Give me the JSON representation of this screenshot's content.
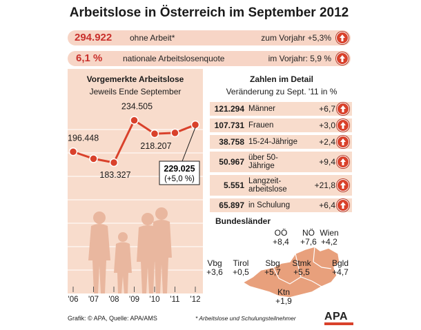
{
  "title": "Arbeitslose in Österreich im September 2012",
  "summary": [
    {
      "value": "294.922",
      "desc": "ohne Arbeit*",
      "cmp": "zum Vorjahr +5,3%"
    },
    {
      "value": "6,1 %",
      "desc": "nationale Arbeitslosenquote",
      "cmp": "im Vorjahr: 5,9 %"
    }
  ],
  "left_heading": "Vorgemerkte Arbeitslose",
  "left_subheading": "Jeweils Ende September",
  "chart_data": {
    "type": "line",
    "title": "Vorgemerkte Arbeitslose",
    "subtitle": "Jeweils Ende September",
    "x": [
      "'06",
      "'07",
      "'08",
      "'09",
      "'10",
      "'11",
      "'12"
    ],
    "values": [
      196448,
      null,
      183327,
      234505,
      218207,
      null,
      229025
    ],
    "series_points": [
      {
        "x": "'06",
        "y": 196448,
        "label": "196.448"
      },
      {
        "x": "'07",
        "y": 188000,
        "label": ""
      },
      {
        "x": "'08",
        "y": 183327,
        "label": "183.327"
      },
      {
        "x": "'09",
        "y": 234505,
        "label": "234.505"
      },
      {
        "x": "'10",
        "y": 218207,
        "label": "218.207"
      },
      {
        "x": "'11",
        "y": 219300,
        "label": ""
      },
      {
        "x": "'12",
        "y": 229025,
        "label": ""
      }
    ],
    "callout": {
      "value": "229.025",
      "change": "(+5,0 %)"
    },
    "ylim": [
      150000,
      250000
    ],
    "color": "#d9412b"
  },
  "right_heading": "Zahlen im Detail",
  "right_subheading": "Veränderung zu Sept. '11 in %",
  "details": [
    {
      "num": "121.294",
      "label": "Männer",
      "change": "+6,7"
    },
    {
      "num": "107.731",
      "label": "Frauen",
      "change": "+3,0"
    },
    {
      "num": "38.758",
      "label": "15-24-Jährige",
      "change": "+2,4"
    },
    {
      "num": "50.967",
      "label": "über 50-\nJährige",
      "change": "+9,4"
    },
    {
      "num": "5.551",
      "label": "Langzeit-\narbeitslose",
      "change": "+21,8"
    },
    {
      "num": "65.897",
      "label": "in Schulung",
      "change": "+6,4"
    }
  ],
  "laender_heading": "Bundesländer",
  "laender": [
    {
      "name": "OÖ",
      "value": "+8,4"
    },
    {
      "name": "NÖ",
      "value": "+7,6"
    },
    {
      "name": "Wien",
      "value": "+4,2"
    },
    {
      "name": "Vbg",
      "value": "+3,6"
    },
    {
      "name": "Tirol",
      "value": "+0,5"
    },
    {
      "name": "Sbg",
      "value": "+5,7"
    },
    {
      "name": "Stmk",
      "value": "+5,5"
    },
    {
      "name": "Bgld",
      "value": "+4,7"
    },
    {
      "name": "Ktn",
      "value": "+1,9"
    }
  ],
  "footer_source": "Grafik: © APA, Quelle: APA/AMS",
  "footer_note": "* Arbeitslose und Schulungsteilnehmer",
  "logo": "APA",
  "colors": {
    "accent": "#d9412b",
    "panel": "#f8dccc",
    "pill": "#f7d5c6",
    "highlight_text": "#c9302c",
    "silhouette": "#e9b79f"
  }
}
